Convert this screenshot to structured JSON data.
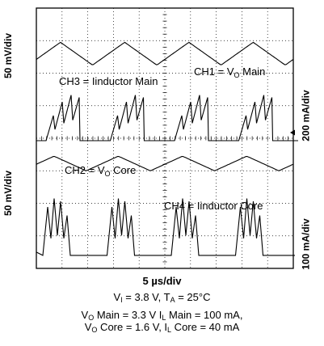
{
  "chart_data": {
    "type": "line",
    "title": "",
    "scale": {
      "timebase": "5 µs/div",
      "time_unit": "µs/div",
      "left_axis": [
        "50 mV/div",
        "50 mV/div"
      ],
      "right_axis": [
        "200 mA/div",
        "100 mA/div"
      ]
    },
    "grid": true,
    "divisions": {
      "x": 10,
      "y": 8
    },
    "trace_values": {
      "note_units": "divisions",
      "ch1_ripple_pp": 0.7,
      "ch2_ripple_pp": 0.45,
      "ch3_peak_span": 1.4,
      "ch4_peak_span": 1.75,
      "switching_period_us": 12.5,
      "bursts_in_window": 4
    },
    "series": [
      {
        "name": "CH1 = V|O| Main",
        "label_main": "CH1 = V",
        "label_sub": "O",
        "label_tail": " Main"
      },
      {
        "name": "CH3 = Iinductor Main",
        "label_main": "CH3 = Iinductor Main",
        "label_sub": "",
        "label_tail": ""
      },
      {
        "name": "CH2 = V|O| Core",
        "label_main": "CH2 = V",
        "label_sub": "O",
        "label_tail": " Core"
      },
      {
        "name": "CH4 = Iinductor Core",
        "label_main": "CH4 = Iinductor Core",
        "label_sub": "",
        "label_tail": ""
      }
    ]
  },
  "labels": {
    "xlabel": "5  µs/div",
    "left_top": "50 mV/div",
    "left_bottom": "50 mV/div",
    "right_top": "200 mA/div",
    "right_bottom": "100 mA/div"
  },
  "conditions": {
    "line1": {
      "a": "V",
      "a_sub": "I",
      "b": " = 3.8 V, T",
      "b_sub": "A",
      "c": " = 25°C"
    },
    "line2": {
      "a": "V",
      "a_sub": "O",
      "b": " Main =  3.3 V I",
      "b_sub": "L",
      "c": " Main = 100 mA,"
    },
    "line3": {
      "a": "V",
      "a_sub": "O",
      "b": " Core = 1.6 V, I",
      "b_sub": "L",
      "c": " Core = 40 mA"
    }
  }
}
